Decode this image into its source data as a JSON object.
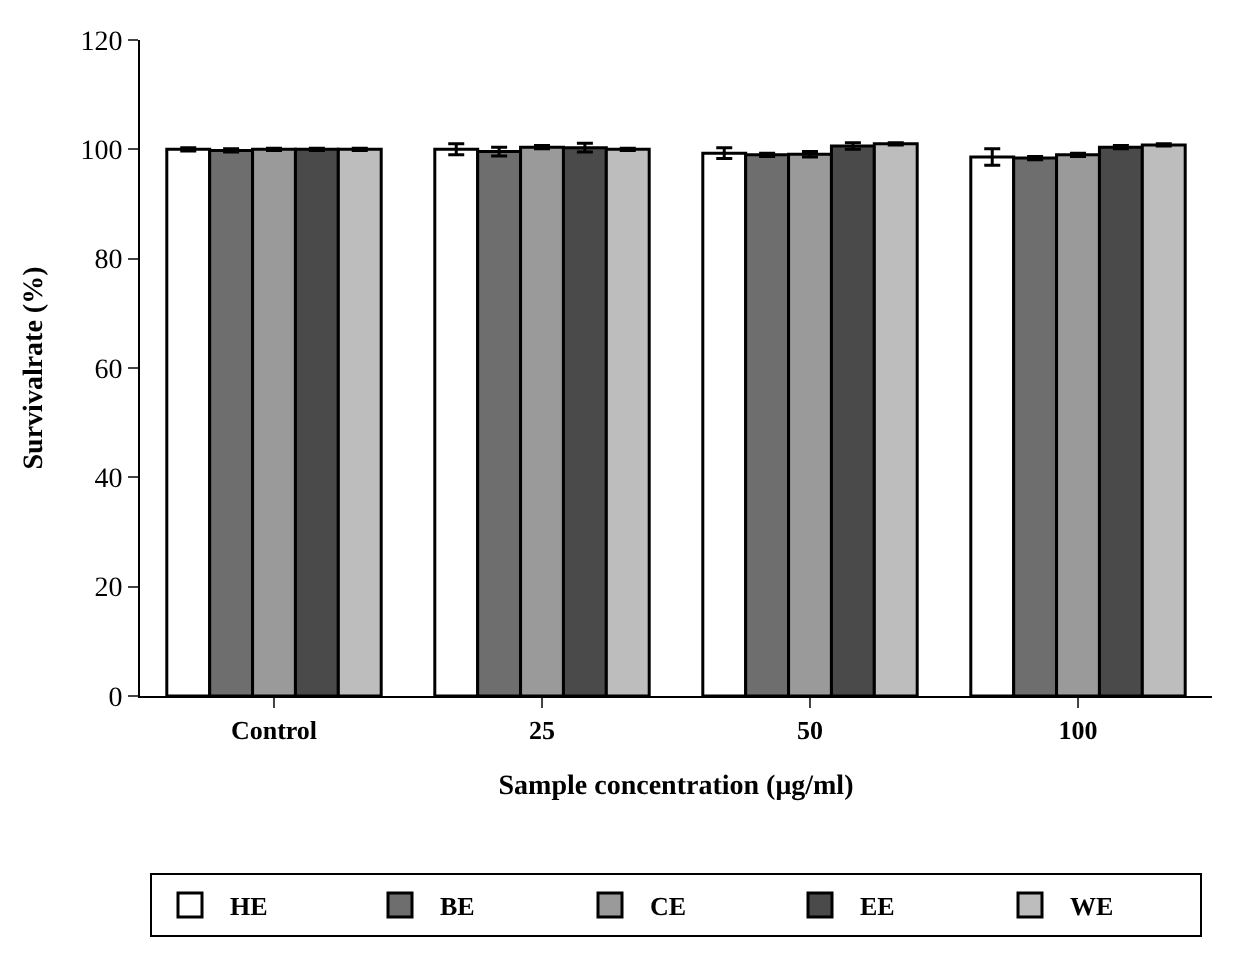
{
  "chart_data": {
    "type": "bar",
    "xlabel": "Sample concentration (μg/ml)",
    "ylabel": "Survivalrate (%)",
    "categories": [
      "Control",
      "25",
      "50",
      "100"
    ],
    "series": [
      {
        "name": "HE",
        "color": "#ffffff",
        "values": [
          100,
          100,
          99.3,
          98.6
        ],
        "errors": [
          0.3,
          1,
          1,
          1.5
        ]
      },
      {
        "name": "BE",
        "color": "#6e6e6e",
        "values": [
          99.8,
          99.6,
          99,
          98.4
        ],
        "errors": [
          0.3,
          0.8,
          0.3,
          0.3
        ]
      },
      {
        "name": "CE",
        "color": "#9a9a9a",
        "values": [
          100,
          100.4,
          99.1,
          99
        ],
        "errors": [
          0.2,
          0.3,
          0.5,
          0.3
        ]
      },
      {
        "name": "EE",
        "color": "#4a4a4a",
        "values": [
          100,
          100.3,
          100.6,
          100.4
        ],
        "errors": [
          0.2,
          0.8,
          0.6,
          0.3
        ]
      },
      {
        "name": "WE",
        "color": "#bdbdbd",
        "values": [
          100,
          100,
          101,
          100.8
        ],
        "errors": [
          0.2,
          0.2,
          0.2,
          0.2
        ]
      }
    ],
    "ylim": [
      0,
      120
    ],
    "yticks": [
      0,
      20,
      40,
      60,
      80,
      100,
      120
    ],
    "grid": false,
    "legend": "bottom"
  }
}
